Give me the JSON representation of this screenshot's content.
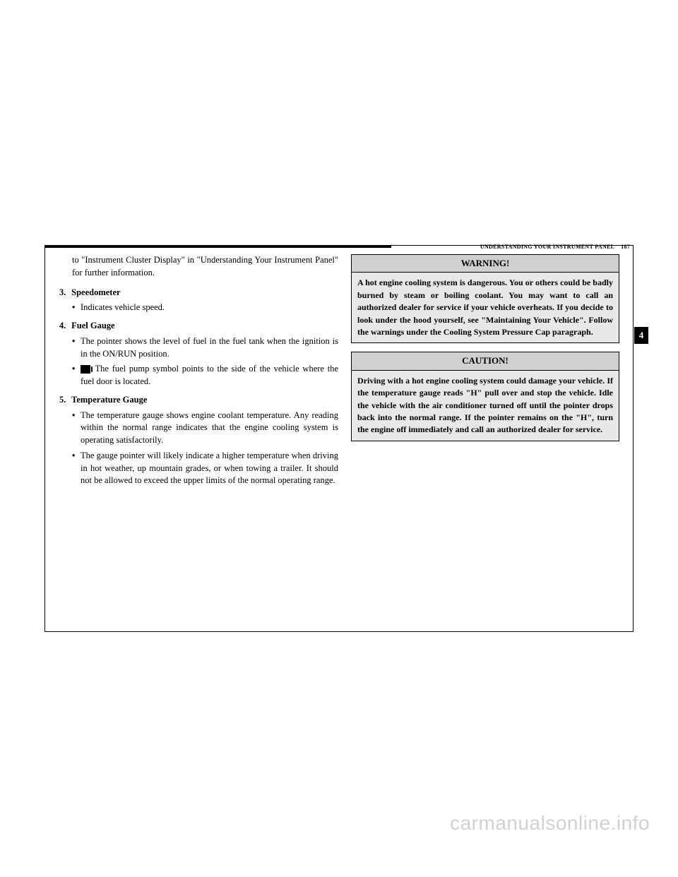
{
  "header": {
    "section_title": "UNDERSTANDING YOUR INSTRUMENT PANEL",
    "page_number": "187"
  },
  "left_column": {
    "continuation_text": "to \"Instrument Cluster Display\" in \"Understanding Your Instrument Panel\" for further information.",
    "items": [
      {
        "num": "3.",
        "title": "Speedometer",
        "bullets": [
          "Indicates vehicle speed."
        ]
      },
      {
        "num": "4.",
        "title": "Fuel Gauge",
        "bullets": [
          "The pointer shows the level of fuel in the fuel tank when the ignition is in the ON/RUN position.",
          "The fuel pump symbol points to the side of the vehicle where the fuel door is located."
        ],
        "has_fuel_icon_on": 1
      },
      {
        "num": "5.",
        "title": "Temperature Gauge",
        "bullets": [
          "The temperature gauge shows engine coolant temperature. Any reading within the normal range indicates that the engine cooling system is operating satisfactorily.",
          "The gauge pointer will likely indicate a higher temperature when driving in hot weather, up mountain grades, or when towing a trailer. It should not be allowed to exceed the upper limits of the normal operating range."
        ]
      }
    ]
  },
  "right_column": {
    "warning": {
      "title": "WARNING!",
      "body": "A hot engine cooling system is dangerous. You or others could be badly burned by steam or boiling coolant. You may want to call an authorized dealer for service if your vehicle overheats. If you decide to look under the hood yourself, see \"Maintaining Your Vehicle\". Follow the warnings under the Cooling System Pressure Cap paragraph."
    },
    "caution": {
      "title": "CAUTION!",
      "body": "Driving with a hot engine cooling system could damage your vehicle. If the temperature gauge reads \"H\" pull over and stop the vehicle. Idle the vehicle with the air conditioner turned off until the pointer drops back into the normal range. If the pointer remains on the \"H\", turn the engine off immediately and call an authorized dealer for service."
    }
  },
  "side_tab": "4",
  "watermark": "carmanualsonline.info"
}
